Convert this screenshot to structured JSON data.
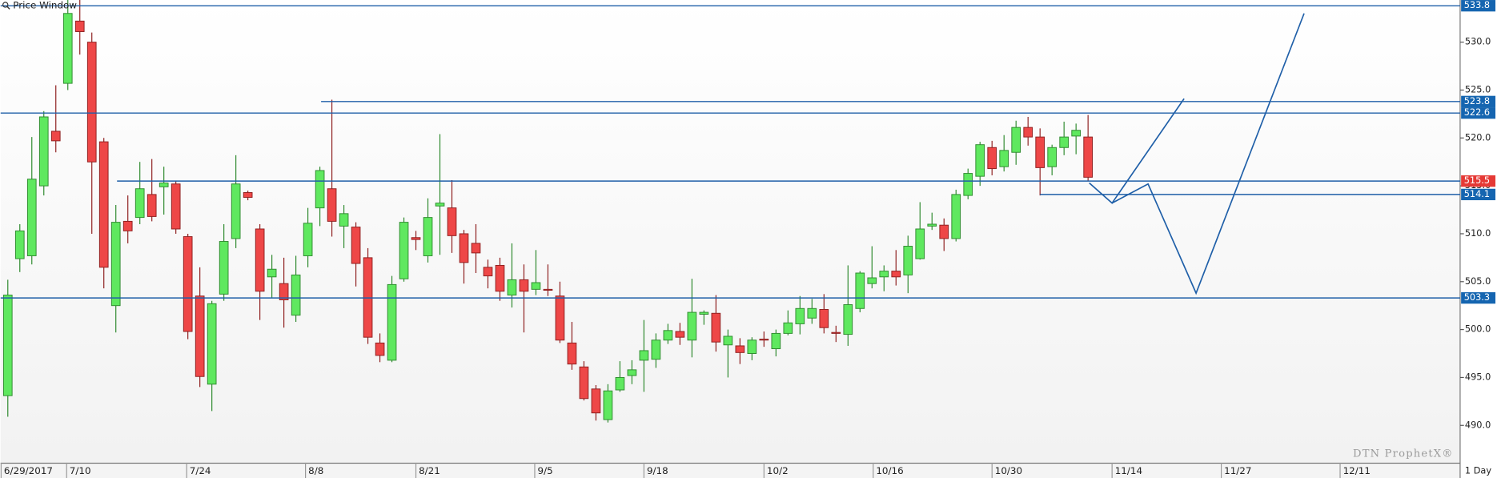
{
  "chart_data": {
    "type": "candlestick",
    "title": "Price Window",
    "watermark": "DTN ProphetX®",
    "interval": "1 Day",
    "up_color": "#5fe85f",
    "down_color": "#ee4747",
    "open": [
      493.1,
      507.4,
      507.7,
      515.0,
      520.7,
      525.7,
      532.2,
      530.0,
      519.6,
      502.5,
      511.3,
      511.7,
      514.1,
      514.9,
      515.2,
      509.7,
      503.5,
      494.3,
      503.7,
      509.5,
      514.3,
      510.5,
      505.5,
      504.8,
      501.5,
      507.7,
      512.7,
      514.7,
      510.8,
      510.7,
      507.5,
      498.6,
      496.8,
      505.3,
      509.6,
      507.7,
      512.9,
      512.7,
      510.0,
      509.0,
      506.5,
      506.7,
      503.6,
      505.2,
      504.2,
      504.2,
      503.5,
      498.6,
      496.1,
      493.8,
      490.6,
      493.7,
      495.2,
      496.8,
      496.9,
      498.9,
      499.8,
      498.9,
      501.6,
      501.7,
      498.4,
      498.3,
      497.5,
      499.0,
      498.0,
      499.6,
      500.6,
      501.2,
      502.1,
      499.7,
      499.5,
      502.2,
      504.8,
      505.5,
      506.1,
      505.7,
      507.4,
      510.8,
      510.9,
      509.5,
      514.0,
      516.0,
      519.0,
      517.0,
      518.5,
      521.1,
      520.1,
      517.0,
      519.0,
      520.2,
      520.1
    ],
    "high": [
      505.2,
      511.0,
      520.1,
      522.8,
      525.5,
      534.5,
      534.5,
      531.0,
      520.0,
      513.0,
      514.0,
      517.5,
      517.8,
      517.0,
      515.5,
      510.0,
      506.5,
      503.0,
      511.0,
      518.2,
      514.5,
      511.0,
      507.8,
      507.5,
      507.7,
      512.7,
      517.0,
      524.0,
      513.0,
      511.2,
      508.5,
      499.6,
      505.6,
      511.7,
      510.3,
      513.7,
      520.4,
      515.6,
      510.4,
      511.0,
      507.3,
      507.5,
      509.0,
      506.8,
      508.3,
      506.8,
      505.0,
      500.8,
      496.7,
      494.2,
      494.3,
      496.7,
      496.8,
      501.0,
      499.6,
      500.6,
      500.7,
      505.3,
      502.0,
      503.6,
      500.0,
      499.1,
      499.2,
      499.8,
      500.0,
      502.0,
      503.5,
      503.2,
      503.7,
      500.4,
      506.7,
      506.1,
      508.7,
      506.7,
      508.3,
      509.8,
      513.3,
      512.2,
      511.6,
      514.6,
      516.8,
      519.6,
      519.7,
      520.3,
      521.8,
      522.2,
      521.0,
      519.3,
      521.7,
      521.5,
      522.4
    ],
    "low": [
      490.9,
      506.0,
      506.8,
      514.0,
      518.5,
      525.0,
      528.7,
      510.0,
      504.3,
      499.7,
      509.0,
      511.0,
      511.3,
      512.0,
      510.0,
      499.0,
      494.0,
      491.5,
      503.0,
      508.5,
      513.5,
      501.0,
      503.3,
      500.2,
      500.8,
      506.5,
      510.8,
      509.7,
      508.5,
      504.5,
      498.5,
      496.6,
      496.6,
      505.0,
      508.3,
      507.0,
      507.8,
      508.0,
      504.8,
      505.9,
      504.3,
      503.0,
      502.3,
      499.7,
      503.6,
      503.5,
      498.6,
      495.8,
      492.6,
      490.5,
      490.3,
      493.5,
      494.3,
      493.5,
      496.0,
      498.5,
      498.4,
      497.1,
      500.5,
      497.7,
      495.0,
      496.4,
      496.8,
      498.2,
      497.2,
      499.4,
      499.5,
      500.6,
      499.6,
      498.7,
      498.3,
      501.8,
      504.3,
      504.0,
      504.6,
      503.8,
      507.3,
      510.4,
      508.2,
      509.2,
      513.6,
      515.0,
      516.1,
      516.5,
      517.2,
      519.2,
      514.0,
      516.1,
      518.2,
      518.3,
      515.5
    ],
    "close": [
      503.6,
      510.3,
      515.7,
      522.2,
      519.7,
      533.0,
      531.1,
      517.5,
      506.5,
      511.2,
      510.3,
      514.7,
      511.8,
      515.3,
      510.5,
      499.8,
      495.1,
      502.7,
      509.2,
      515.2,
      513.8,
      504.0,
      506.3,
      503.1,
      505.7,
      511.1,
      516.6,
      511.3,
      512.1,
      506.9,
      499.2,
      497.3,
      504.7,
      511.2,
      509.4,
      511.7,
      513.2,
      509.8,
      507.0,
      508.0,
      505.6,
      504.0,
      505.2,
      504.0,
      504.9,
      504.1,
      498.9,
      496.4,
      492.8,
      491.3,
      493.6,
      495.0,
      495.8,
      497.8,
      498.9,
      499.9,
      499.2,
      501.8,
      501.8,
      498.7,
      499.3,
      497.6,
      498.9,
      498.9,
      499.6,
      500.7,
      502.2,
      502.2,
      500.2,
      499.6,
      502.6,
      505.9,
      505.4,
      506.1,
      505.5,
      508.7,
      510.5,
      511.0,
      509.5,
      514.1,
      516.3,
      519.3,
      516.8,
      518.7,
      521.1,
      520.1,
      516.9,
      519.0,
      520.1,
      520.8,
      515.9
    ],
    "xlim": [
      -0.6,
      121
    ],
    "xticks": [
      {
        "value": -0.6,
        "label": "6/29/2017"
      },
      {
        "value": 4.9,
        "label": "7/10"
      },
      {
        "value": 14.9,
        "label": "7/24"
      },
      {
        "value": 24.8,
        "label": "8/8"
      },
      {
        "value": 34.0,
        "label": "8/21"
      },
      {
        "value": 43.9,
        "label": "9/5"
      },
      {
        "value": 53.0,
        "label": "9/18"
      },
      {
        "value": 63.0,
        "label": "10/2"
      },
      {
        "value": 72.1,
        "label": "10/16"
      },
      {
        "value": 82.0,
        "label": "10/30"
      },
      {
        "value": 92.0,
        "label": "11/14"
      },
      {
        "value": 101.1,
        "label": "11/27"
      },
      {
        "value": 111.0,
        "label": "12/11"
      }
    ],
    "ylim": [
      486.1,
      534.4
    ],
    "yticks": [
      {
        "value": 490,
        "label": "490.0"
      },
      {
        "value": 495,
        "label": "495.0"
      },
      {
        "value": 500,
        "label": "500.0"
      },
      {
        "value": 505,
        "label": "505.0"
      },
      {
        "value": 510,
        "label": "510.0"
      },
      {
        "value": 515,
        "label": "515.0"
      },
      {
        "value": 520,
        "label": "520.0"
      },
      {
        "value": 525,
        "label": "525.0"
      },
      {
        "value": 530,
        "label": "530.0"
      }
    ],
    "levels": [
      {
        "value": 533.8,
        "start": -0.6,
        "color": "#1565b0"
      },
      {
        "value": 523.8,
        "start": 26.1,
        "color": "#1565b0"
      },
      {
        "value": 522.6,
        "start": -0.6,
        "color": "#1565b0"
      },
      {
        "value": 515.5,
        "start": 9.1,
        "color": "#e53935"
      },
      {
        "value": 514.1,
        "start": 86.0,
        "color": "#1565b0"
      },
      {
        "value": 503.3,
        "start": -0.6,
        "color": "#1565b0"
      }
    ],
    "trendlines": [
      {
        "color": "#1f5fa8",
        "x": [
          90.1,
          92.0,
          98.0
        ],
        "y": [
          515.3,
          513.2,
          524.1
        ]
      },
      {
        "color": "#1f5fa8",
        "x": [
          92.0,
          95.0,
          99.0,
          108.0
        ],
        "y": [
          513.2,
          515.2,
          503.8,
          533.0
        ]
      }
    ]
  }
}
